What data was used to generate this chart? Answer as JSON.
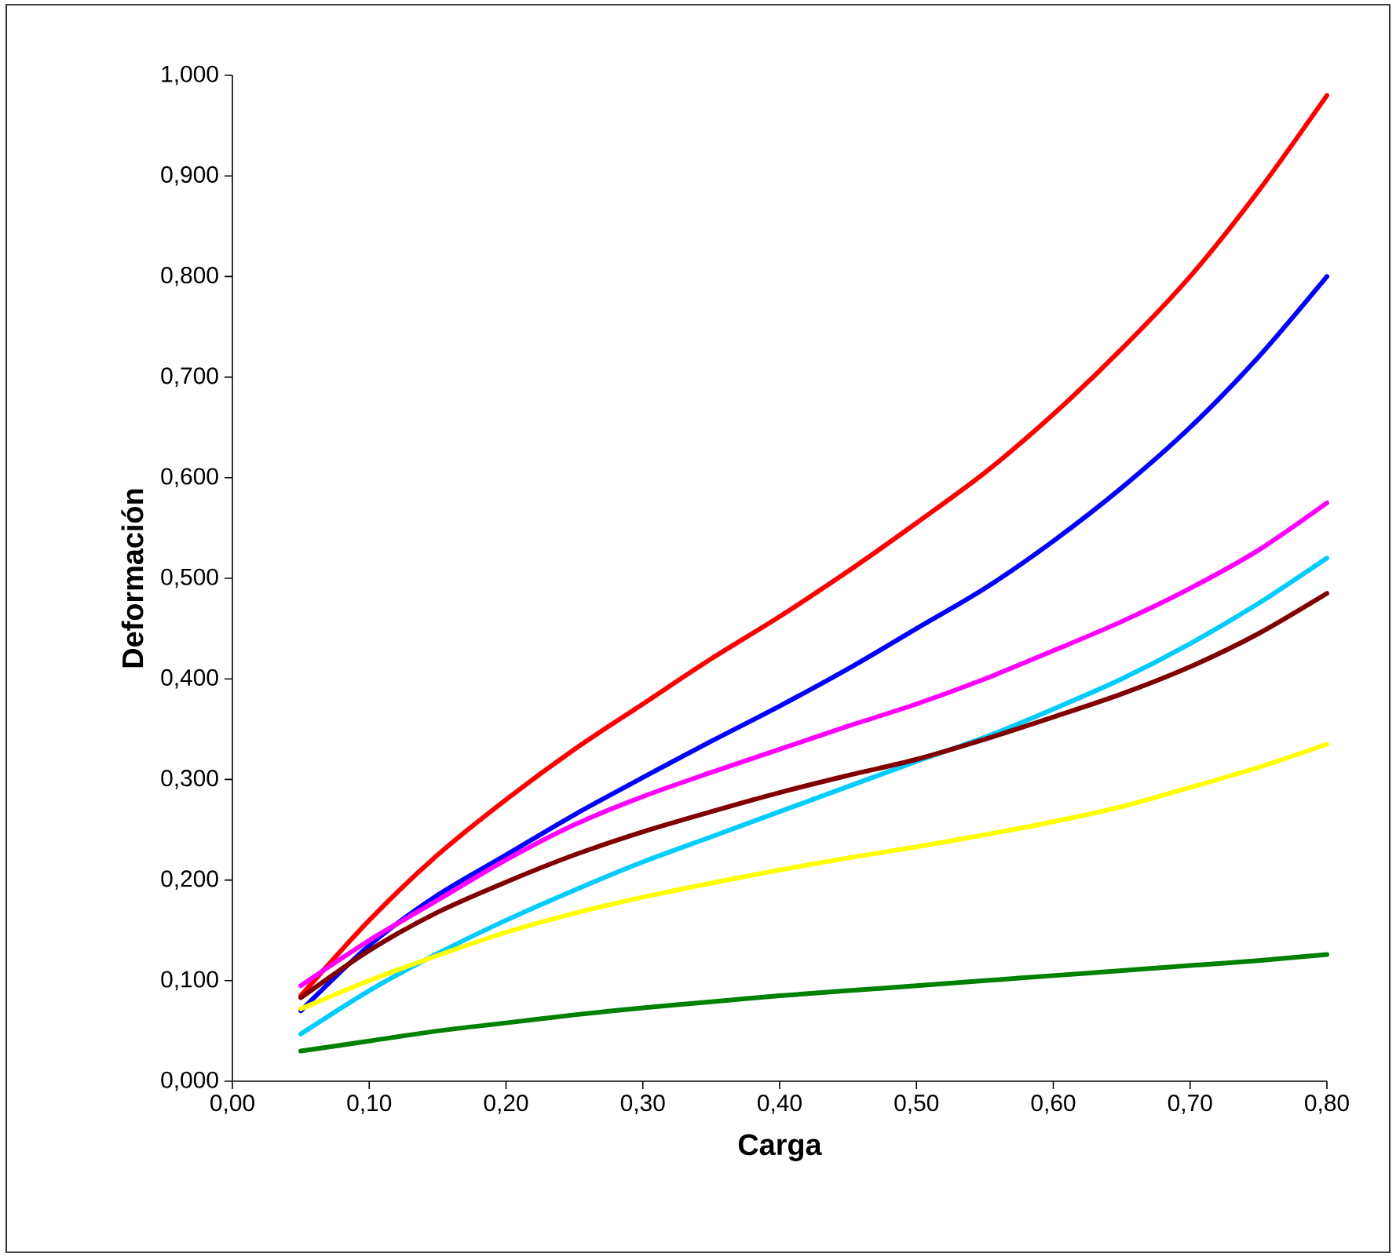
{
  "chart_data": {
    "type": "line",
    "xlabel": "Carga",
    "ylabel": "Deformación",
    "x": [
      0.05,
      0.1,
      0.15,
      0.2,
      0.25,
      0.3,
      0.35,
      0.4,
      0.45,
      0.5,
      0.55,
      0.6,
      0.65,
      0.7,
      0.75,
      0.8
    ],
    "series": [
      {
        "color": "#ff0000",
        "values": [
          0.085,
          0.16,
          0.225,
          0.28,
          0.33,
          0.375,
          0.42,
          0.462,
          0.507,
          0.555,
          0.605,
          0.663,
          0.728,
          0.8,
          0.885,
          0.98
        ]
      },
      {
        "color": "#0000ff",
        "values": [
          0.07,
          0.135,
          0.185,
          0.225,
          0.265,
          0.302,
          0.338,
          0.373,
          0.41,
          0.45,
          0.49,
          0.537,
          0.59,
          0.65,
          0.72,
          0.8
        ]
      },
      {
        "color": "#ff00ff",
        "values": [
          0.095,
          0.14,
          0.18,
          0.22,
          0.255,
          0.283,
          0.307,
          0.33,
          0.353,
          0.375,
          0.4,
          0.428,
          0.457,
          0.49,
          0.528,
          0.575
        ]
      },
      {
        "color": "#00ccff",
        "values": [
          0.047,
          0.09,
          0.127,
          0.16,
          0.19,
          0.218,
          0.243,
          0.268,
          0.293,
          0.318,
          0.342,
          0.37,
          0.4,
          0.435,
          0.475,
          0.52
        ]
      },
      {
        "color": "#800000",
        "values": [
          0.083,
          0.13,
          0.168,
          0.198,
          0.225,
          0.248,
          0.268,
          0.287,
          0.304,
          0.32,
          0.34,
          0.362,
          0.385,
          0.412,
          0.445,
          0.485
        ]
      },
      {
        "color": "#ffff00",
        "values": [
          0.072,
          0.1,
          0.125,
          0.148,
          0.167,
          0.183,
          0.197,
          0.21,
          0.222,
          0.233,
          0.245,
          0.258,
          0.273,
          0.292,
          0.312,
          0.335
        ]
      },
      {
        "color": "#008000",
        "values": [
          0.03,
          0.04,
          0.05,
          0.058,
          0.066,
          0.073,
          0.079,
          0.085,
          0.09,
          0.095,
          0.1,
          0.105,
          0.11,
          0.115,
          0.12,
          0.126
        ]
      }
    ],
    "xlim": [
      0,
      0.8
    ],
    "xticks": [
      {
        "value": 0,
        "label": "0,00"
      },
      {
        "value": 0.1,
        "label": "0,10"
      },
      {
        "value": 0.2,
        "label": "0,20"
      },
      {
        "value": 0.3,
        "label": "0,30"
      },
      {
        "value": 0.4,
        "label": "0,40"
      },
      {
        "value": 0.5,
        "label": "0,50"
      },
      {
        "value": 0.6,
        "label": "0,60"
      },
      {
        "value": 0.7,
        "label": "0,70"
      },
      {
        "value": 0.8,
        "label": "0,80"
      }
    ],
    "ylim": [
      0,
      1
    ],
    "yticks": [
      {
        "value": 0,
        "label": "0,000"
      },
      {
        "value": 0.1,
        "label": "0,100"
      },
      {
        "value": 0.2,
        "label": "0,200"
      },
      {
        "value": 0.3,
        "label": "0,300"
      },
      {
        "value": 0.4,
        "label": "0,400"
      },
      {
        "value": 0.5,
        "label": "0,500"
      },
      {
        "value": 0.6,
        "label": "0,600"
      },
      {
        "value": 0.7,
        "label": "0,700"
      },
      {
        "value": 0.8,
        "label": "0,800"
      },
      {
        "value": 0.9,
        "label": "0,900"
      },
      {
        "value": 1.0,
        "label": "1,000"
      }
    ],
    "grid": false,
    "marker": "none",
    "line_style": "solid"
  }
}
